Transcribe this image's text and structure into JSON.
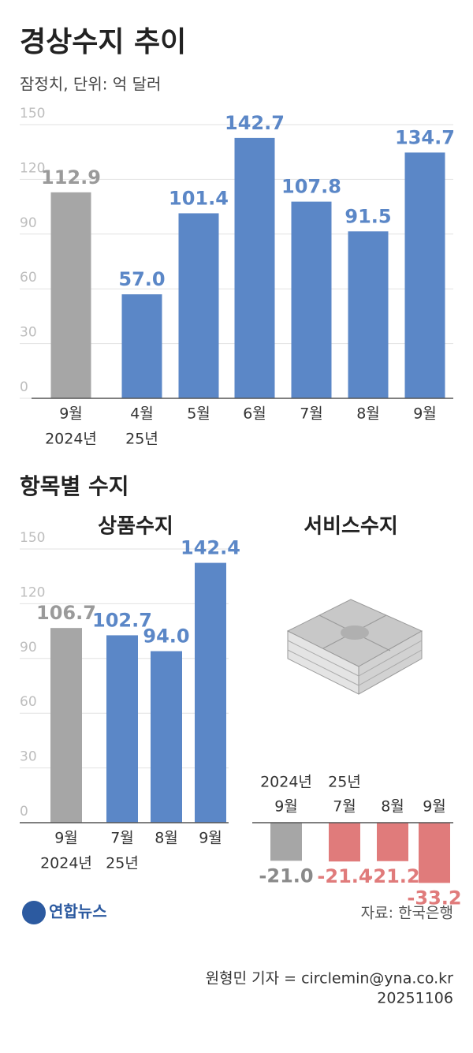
{
  "chart_data": [
    {
      "type": "bar",
      "title": "경상수지 추이",
      "subtitle": "잠정치, 단위: 억 달러",
      "categories": [
        [
          "9월",
          "2024년"
        ],
        [
          "4월",
          "25년"
        ],
        [
          "5월"
        ],
        [
          "6월"
        ],
        [
          "7월"
        ],
        [
          "8월"
        ],
        [
          "9월"
        ]
      ],
      "values": [
        112.9,
        57.0,
        101.4,
        142.7,
        107.8,
        91.5,
        134.7
      ],
      "value_labels": [
        "112.9",
        "57.0",
        "101.4",
        "142.7",
        "107.8",
        "91.5",
        "134.7"
      ],
      "colors": [
        "#a6a6a6",
        "#5b87c7",
        "#5b87c7",
        "#5b87c7",
        "#5b87c7",
        "#5b87c7",
        "#5b87c7"
      ],
      "label_colors": [
        "#9a9a9a",
        "#5b87c7",
        "#5b87c7",
        "#5b87c7",
        "#5b87c7",
        "#5b87c7",
        "#5b87c7"
      ],
      "ylim": [
        0,
        150
      ],
      "yticks": [
        0,
        30,
        60,
        90,
        120,
        150
      ],
      "grid": true
    },
    {
      "type": "bar",
      "title": "상품수지",
      "categories": [
        [
          "9월",
          "2024년"
        ],
        [
          "7월",
          "25년"
        ],
        [
          "8월"
        ],
        [
          "9월"
        ]
      ],
      "values": [
        106.7,
        102.7,
        94.0,
        142.4
      ],
      "value_labels": [
        "106.7",
        "102.7",
        "94.0",
        "142.4"
      ],
      "colors": [
        "#a6a6a6",
        "#5b87c7",
        "#5b87c7",
        "#5b87c7"
      ],
      "label_colors": [
        "#9a9a9a",
        "#5b87c7",
        "#5b87c7",
        "#5b87c7"
      ],
      "ylim": [
        0,
        150
      ],
      "yticks": [
        0,
        30,
        60,
        90,
        120,
        150
      ],
      "grid": true
    },
    {
      "type": "bar",
      "title": "서비스수지",
      "categories": [
        [
          "2024년",
          "9월"
        ],
        [
          "25년",
          "7월"
        ],
        [
          "8월"
        ],
        [
          "9월"
        ]
      ],
      "values": [
        -21.0,
        -21.4,
        -21.2,
        -33.2
      ],
      "value_labels": [
        "-21.0",
        "-21.4",
        "-21.2",
        "-33.2"
      ],
      "colors": [
        "#a6a6a6",
        "#e07b7b",
        "#e07b7b",
        "#e07b7b"
      ],
      "label_colors": [
        "#8a8a8a",
        "#e07b7b",
        "#e07b7b",
        "#e07b7b"
      ],
      "ylim": [
        -35,
        0
      ],
      "grid": false
    }
  ],
  "section_title": "항목별 수지",
  "footer": {
    "logo": "연합뉴스",
    "source": "자료: 한국은행",
    "credit": "원형민 기자 = circlemin@yna.co.kr",
    "date": "20251106"
  }
}
